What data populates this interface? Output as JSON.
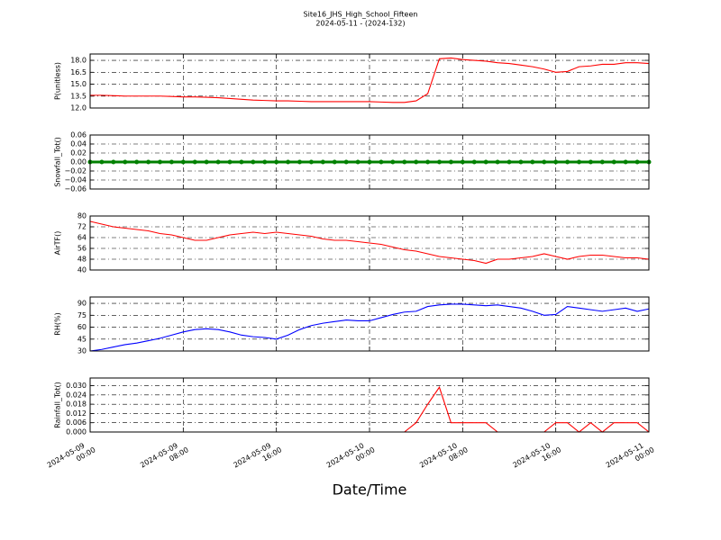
{
  "title": "Site16_JHS_High_School_Fifteen",
  "subtitle": "2024-05-11 - (2024-132)",
  "xlabel": "Date/Time",
  "chart_data": [
    {
      "type": "line",
      "ylabel": "P(unitless)",
      "color": "#ff0000",
      "grid": true,
      "x": [
        "2024-05-09 00:00",
        "2024-05-09 01:00",
        "2024-05-09 02:00",
        "2024-05-09 03:00",
        "2024-05-09 04:00",
        "2024-05-09 05:00",
        "2024-05-09 06:00",
        "2024-05-09 07:00",
        "2024-05-09 08:00",
        "2024-05-09 09:00",
        "2024-05-09 10:00",
        "2024-05-09 11:00",
        "2024-05-09 12:00",
        "2024-05-09 13:00",
        "2024-05-09 14:00",
        "2024-05-09 15:00",
        "2024-05-09 16:00",
        "2024-05-09 17:00",
        "2024-05-09 18:00",
        "2024-05-09 19:00",
        "2024-05-09 20:00",
        "2024-05-09 21:00",
        "2024-05-09 22:00",
        "2024-05-09 23:00",
        "2024-05-10 00:00",
        "2024-05-10 01:00",
        "2024-05-10 02:00",
        "2024-05-10 03:00",
        "2024-05-10 04:00",
        "2024-05-10 05:00",
        "2024-05-10 06:00",
        "2024-05-10 07:00",
        "2024-05-10 08:00",
        "2024-05-10 09:00",
        "2024-05-10 10:00",
        "2024-05-10 11:00",
        "2024-05-10 12:00",
        "2024-05-10 13:00",
        "2024-05-10 14:00",
        "2024-05-10 15:00",
        "2024-05-10 16:00",
        "2024-05-10 17:00",
        "2024-05-10 18:00",
        "2024-05-10 19:00",
        "2024-05-10 20:00",
        "2024-05-10 21:00",
        "2024-05-10 22:00",
        "2024-05-10 23:00",
        "2024-05-11 00:00"
      ],
      "values": [
        13.6,
        13.6,
        13.55,
        13.5,
        13.5,
        13.5,
        13.5,
        13.45,
        13.4,
        13.4,
        13.35,
        13.3,
        13.2,
        13.1,
        13.0,
        12.95,
        12.9,
        12.9,
        12.85,
        12.8,
        12.8,
        12.8,
        12.8,
        12.8,
        12.8,
        12.75,
        12.7,
        12.7,
        12.9,
        13.8,
        18.2,
        18.3,
        18.1,
        18.0,
        17.9,
        17.7,
        17.6,
        17.4,
        17.2,
        16.9,
        16.5,
        16.6,
        17.2,
        17.3,
        17.5,
        17.5,
        17.7,
        17.7,
        17.6
      ],
      "xlim": [
        "2024-05-09 00:00",
        "2024-05-11 00:00"
      ],
      "xticks": [
        "2024-05-09 00:00",
        "2024-05-09 08:00",
        "2024-05-09 16:00",
        "2024-05-10 00:00",
        "2024-05-10 08:00",
        "2024-05-10 16:00",
        "2024-05-11 00:00"
      ],
      "ylim": [
        12,
        18.8
      ],
      "yticks": [
        {
          "value": 12,
          "label": "12.0"
        },
        {
          "value": 13.5,
          "label": "13.5"
        },
        {
          "value": 15,
          "label": "15.0"
        },
        {
          "value": 16.5,
          "label": "16.5"
        },
        {
          "value": 18,
          "label": "18.0"
        }
      ]
    },
    {
      "type": "line",
      "ylabel": "Snowfall_Tot()",
      "color": "#008000",
      "markers": true,
      "grid": true,
      "x": [
        "2024-05-09 00:00",
        "2024-05-09 01:00",
        "2024-05-09 02:00",
        "2024-05-09 03:00",
        "2024-05-09 04:00",
        "2024-05-09 05:00",
        "2024-05-09 06:00",
        "2024-05-09 07:00",
        "2024-05-09 08:00",
        "2024-05-09 09:00",
        "2024-05-09 10:00",
        "2024-05-09 11:00",
        "2024-05-09 12:00",
        "2024-05-09 13:00",
        "2024-05-09 14:00",
        "2024-05-09 15:00",
        "2024-05-09 16:00",
        "2024-05-09 17:00",
        "2024-05-09 18:00",
        "2024-05-09 19:00",
        "2024-05-09 20:00",
        "2024-05-09 21:00",
        "2024-05-09 22:00",
        "2024-05-09 23:00",
        "2024-05-10 00:00",
        "2024-05-10 01:00",
        "2024-05-10 02:00",
        "2024-05-10 03:00",
        "2024-05-10 04:00",
        "2024-05-10 05:00",
        "2024-05-10 06:00",
        "2024-05-10 07:00",
        "2024-05-10 08:00",
        "2024-05-10 09:00",
        "2024-05-10 10:00",
        "2024-05-10 11:00",
        "2024-05-10 12:00",
        "2024-05-10 13:00",
        "2024-05-10 14:00",
        "2024-05-10 15:00",
        "2024-05-10 16:00",
        "2024-05-10 17:00",
        "2024-05-10 18:00",
        "2024-05-10 19:00",
        "2024-05-10 20:00",
        "2024-05-10 21:00",
        "2024-05-10 22:00",
        "2024-05-10 23:00",
        "2024-05-11 00:00"
      ],
      "values": [
        0,
        0,
        0,
        0,
        0,
        0,
        0,
        0,
        0,
        0,
        0,
        0,
        0,
        0,
        0,
        0,
        0,
        0,
        0,
        0,
        0,
        0,
        0,
        0,
        0,
        0,
        0,
        0,
        0,
        0,
        0,
        0,
        0,
        0,
        0,
        0,
        0,
        0,
        0,
        0,
        0,
        0,
        0,
        0,
        0,
        0,
        0,
        0,
        0
      ],
      "xlim": [
        "2024-05-09 00:00",
        "2024-05-11 00:00"
      ],
      "xticks": [
        "2024-05-09 00:00",
        "2024-05-09 08:00",
        "2024-05-09 16:00",
        "2024-05-10 00:00",
        "2024-05-10 08:00",
        "2024-05-10 16:00",
        "2024-05-11 00:00"
      ],
      "ylim": [
        -0.06,
        0.06
      ],
      "yticks": [
        {
          "value": -0.06,
          "label": "−0.06"
        },
        {
          "value": -0.04,
          "label": "−0.04"
        },
        {
          "value": -0.02,
          "label": "−0.02"
        },
        {
          "value": 0,
          "label": "0.00"
        },
        {
          "value": 0.02,
          "label": "0.02"
        },
        {
          "value": 0.04,
          "label": "0.04"
        },
        {
          "value": 0.06,
          "label": "0.06"
        }
      ]
    },
    {
      "type": "line",
      "ylabel": "AirTF()",
      "color": "#ff0000",
      "grid": true,
      "x": [
        "2024-05-09 00:00",
        "2024-05-09 01:00",
        "2024-05-09 02:00",
        "2024-05-09 03:00",
        "2024-05-09 04:00",
        "2024-05-09 05:00",
        "2024-05-09 06:00",
        "2024-05-09 07:00",
        "2024-05-09 08:00",
        "2024-05-09 09:00",
        "2024-05-09 10:00",
        "2024-05-09 11:00",
        "2024-05-09 12:00",
        "2024-05-09 13:00",
        "2024-05-09 14:00",
        "2024-05-09 15:00",
        "2024-05-09 16:00",
        "2024-05-09 17:00",
        "2024-05-09 18:00",
        "2024-05-09 19:00",
        "2024-05-09 20:00",
        "2024-05-09 21:00",
        "2024-05-09 22:00",
        "2024-05-09 23:00",
        "2024-05-10 00:00",
        "2024-05-10 01:00",
        "2024-05-10 02:00",
        "2024-05-10 03:00",
        "2024-05-10 04:00",
        "2024-05-10 05:00",
        "2024-05-10 06:00",
        "2024-05-10 07:00",
        "2024-05-10 08:00",
        "2024-05-10 09:00",
        "2024-05-10 10:00",
        "2024-05-10 11:00",
        "2024-05-10 12:00",
        "2024-05-10 13:00",
        "2024-05-10 14:00",
        "2024-05-10 15:00",
        "2024-05-10 16:00",
        "2024-05-10 17:00",
        "2024-05-10 18:00",
        "2024-05-10 19:00",
        "2024-05-10 20:00",
        "2024-05-10 21:00",
        "2024-05-10 22:00",
        "2024-05-10 23:00",
        "2024-05-11 00:00"
      ],
      "values": [
        76,
        74,
        72,
        71,
        70,
        69,
        67,
        66,
        64,
        62,
        62,
        64,
        66,
        67,
        68,
        67,
        68,
        67,
        66,
        65,
        63,
        62,
        62,
        61,
        60,
        59,
        57,
        55,
        54,
        52,
        50,
        49,
        48,
        47,
        45,
        48,
        48,
        49,
        50,
        52,
        50,
        48,
        50,
        51,
        51,
        50,
        49,
        49,
        48
      ],
      "xlim": [
        "2024-05-09 00:00",
        "2024-05-11 00:00"
      ],
      "xticks": [
        "2024-05-09 00:00",
        "2024-05-09 08:00",
        "2024-05-09 16:00",
        "2024-05-10 00:00",
        "2024-05-10 08:00",
        "2024-05-10 16:00",
        "2024-05-11 00:00"
      ],
      "ylim": [
        40,
        80
      ],
      "yticks": [
        40,
        48,
        56,
        64,
        72,
        80
      ]
    },
    {
      "type": "line",
      "ylabel": "RH(%)",
      "color": "#0000ff",
      "grid": true,
      "x": [
        "2024-05-09 00:00",
        "2024-05-09 01:00",
        "2024-05-09 02:00",
        "2024-05-09 03:00",
        "2024-05-09 04:00",
        "2024-05-09 05:00",
        "2024-05-09 06:00",
        "2024-05-09 07:00",
        "2024-05-09 08:00",
        "2024-05-09 09:00",
        "2024-05-09 10:00",
        "2024-05-09 11:00",
        "2024-05-09 12:00",
        "2024-05-09 13:00",
        "2024-05-09 14:00",
        "2024-05-09 15:00",
        "2024-05-09 16:00",
        "2024-05-09 17:00",
        "2024-05-09 18:00",
        "2024-05-09 19:00",
        "2024-05-09 20:00",
        "2024-05-09 21:00",
        "2024-05-09 22:00",
        "2024-05-09 23:00",
        "2024-05-10 00:00",
        "2024-05-10 01:00",
        "2024-05-10 02:00",
        "2024-05-10 03:00",
        "2024-05-10 04:00",
        "2024-05-10 05:00",
        "2024-05-10 06:00",
        "2024-05-10 07:00",
        "2024-05-10 08:00",
        "2024-05-10 09:00",
        "2024-05-10 10:00",
        "2024-05-10 11:00",
        "2024-05-10 12:00",
        "2024-05-10 13:00",
        "2024-05-10 14:00",
        "2024-05-10 15:00",
        "2024-05-10 16:00",
        "2024-05-10 17:00",
        "2024-05-10 18:00",
        "2024-05-10 19:00",
        "2024-05-10 20:00",
        "2024-05-10 21:00",
        "2024-05-10 22:00",
        "2024-05-10 23:00",
        "2024-05-11 00:00"
      ],
      "values": [
        30,
        32,
        35,
        38,
        40,
        43,
        46,
        50,
        54,
        57,
        58,
        57,
        54,
        50,
        48,
        47,
        45,
        50,
        57,
        62,
        65,
        67,
        69,
        68,
        68,
        72,
        76,
        79,
        80,
        86,
        88,
        89,
        89,
        88,
        87,
        88,
        86,
        84,
        80,
        75,
        76,
        86,
        84,
        82,
        80,
        82,
        84,
        80,
        83
      ],
      "xlim": [
        "2024-05-09 00:00",
        "2024-05-11 00:00"
      ],
      "xticks": [
        "2024-05-09 00:00",
        "2024-05-09 08:00",
        "2024-05-09 16:00",
        "2024-05-10 00:00",
        "2024-05-10 08:00",
        "2024-05-10 16:00",
        "2024-05-11 00:00"
      ],
      "ylim": [
        30,
        98
      ],
      "yticks": [
        30,
        45,
        60,
        75,
        90
      ]
    },
    {
      "type": "line",
      "ylabel": "Rainfall_Tot()",
      "color": "#ff0000",
      "grid": true,
      "x": [
        "2024-05-09 00:00",
        "2024-05-09 01:00",
        "2024-05-09 02:00",
        "2024-05-09 03:00",
        "2024-05-09 04:00",
        "2024-05-09 05:00",
        "2024-05-09 06:00",
        "2024-05-09 07:00",
        "2024-05-09 08:00",
        "2024-05-09 09:00",
        "2024-05-09 10:00",
        "2024-05-09 11:00",
        "2024-05-09 12:00",
        "2024-05-09 13:00",
        "2024-05-09 14:00",
        "2024-05-09 15:00",
        "2024-05-09 16:00",
        "2024-05-09 17:00",
        "2024-05-09 18:00",
        "2024-05-09 19:00",
        "2024-05-09 20:00",
        "2024-05-09 21:00",
        "2024-05-09 22:00",
        "2024-05-09 23:00",
        "2024-05-10 00:00",
        "2024-05-10 01:00",
        "2024-05-10 02:00",
        "2024-05-10 03:00",
        "2024-05-10 04:00",
        "2024-05-10 05:00",
        "2024-05-10 06:00",
        "2024-05-10 07:00",
        "2024-05-10 08:00",
        "2024-05-10 09:00",
        "2024-05-10 10:00",
        "2024-05-10 11:00",
        "2024-05-10 12:00",
        "2024-05-10 13:00",
        "2024-05-10 14:00",
        "2024-05-10 15:00",
        "2024-05-10 16:00",
        "2024-05-10 17:00",
        "2024-05-10 18:00",
        "2024-05-10 19:00",
        "2024-05-10 20:00",
        "2024-05-10 21:00",
        "2024-05-10 22:00",
        "2024-05-10 23:00",
        "2024-05-11 00:00"
      ],
      "values": [
        0,
        0,
        0,
        0,
        0,
        0,
        0,
        0,
        0,
        0,
        0,
        0,
        0,
        0,
        0,
        0,
        0,
        0,
        0,
        0,
        0,
        0,
        0,
        0,
        0,
        0,
        0,
        0,
        0.006,
        0.018,
        0.029,
        0.006,
        0.006,
        0.006,
        0.006,
        0,
        0,
        0,
        0,
        0,
        0.006,
        0.006,
        0,
        0.006,
        0,
        0.006,
        0.006,
        0.006,
        0
      ],
      "xlim": [
        "2024-05-09 00:00",
        "2024-05-11 00:00"
      ],
      "xticks": [
        "2024-05-09 00:00",
        "2024-05-09 08:00",
        "2024-05-09 16:00",
        "2024-05-10 00:00",
        "2024-05-10 08:00",
        "2024-05-10 16:00",
        "2024-05-11 00:00"
      ],
      "ylim": [
        0,
        0.035
      ],
      "yticks": [
        {
          "value": 0,
          "label": "0.000"
        },
        {
          "value": 0.006,
          "label": "0.006"
        },
        {
          "value": 0.012,
          "label": "0.012"
        },
        {
          "value": 0.018,
          "label": "0.018"
        },
        {
          "value": 0.024,
          "label": "0.024"
        },
        {
          "value": 0.03,
          "label": "0.030"
        }
      ]
    }
  ]
}
